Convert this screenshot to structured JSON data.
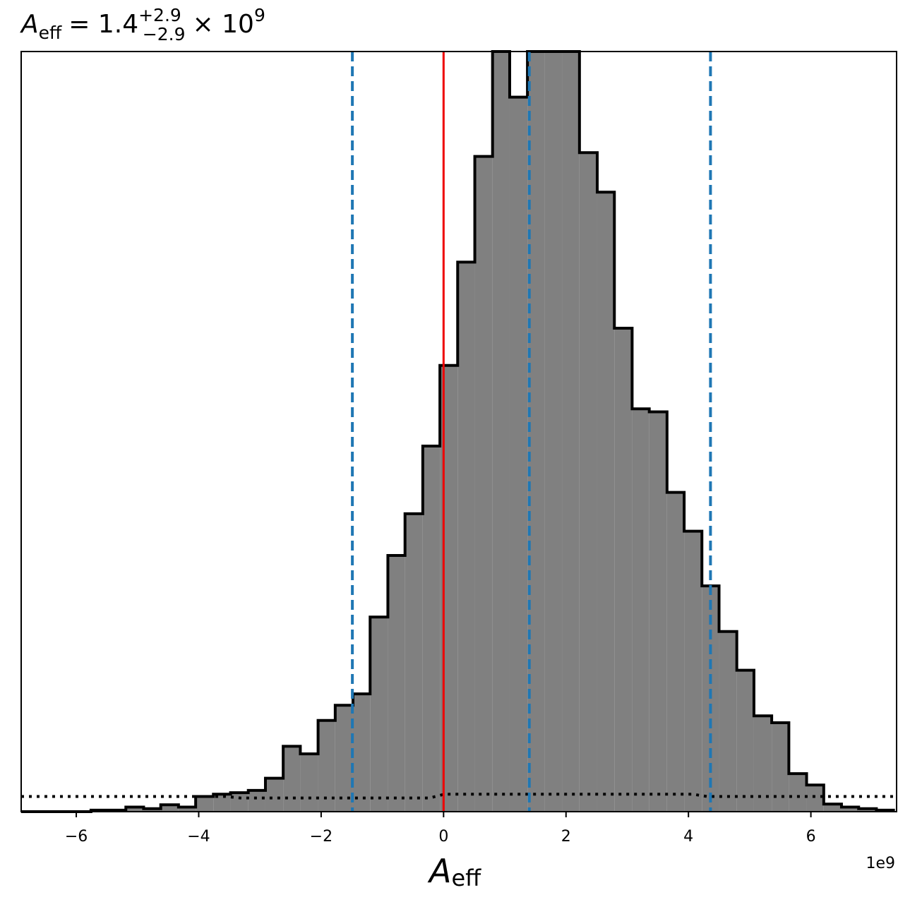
{
  "chart_data": {
    "type": "histogram",
    "title": {
      "symbol": "A",
      "subscript": "eff",
      "equals": "= 1.4",
      "superscript_err": "+2.9",
      "subscript_err": "−2.9",
      "multiplier": "× 10",
      "multiplier_exp": "9"
    },
    "xlabel": {
      "symbol": "A",
      "subscript": "eff"
    },
    "x_offset_label": "1e9",
    "xlim": [
      -6.9,
      7.4
    ],
    "ylim": [
      0,
      1.0
    ],
    "xticks": [
      -6,
      -4,
      -2,
      0,
      2,
      4,
      6
    ],
    "xtick_labels": [
      "−6",
      "−4",
      "−2",
      "0",
      "2",
      "4",
      "6"
    ],
    "grid": false,
    "bins": {
      "edges": [
        -6.9,
        -6.61,
        -6.33,
        -6.04,
        -5.76,
        -5.47,
        -5.19,
        -4.9,
        -4.62,
        -4.33,
        -4.05,
        -3.76,
        -3.48,
        -3.19,
        -2.91,
        -2.62,
        -2.34,
        -2.05,
        -1.77,
        -1.48,
        -1.2,
        -0.91,
        -0.63,
        -0.34,
        -0.06,
        0.23,
        0.51,
        0.8,
        1.08,
        1.37,
        1.65,
        1.94,
        2.22,
        2.51,
        2.79,
        3.08,
        3.36,
        3.65,
        3.93,
        4.22,
        4.5,
        4.79,
        5.07,
        5.36,
        5.64,
        5.93,
        6.21,
        6.5,
        6.78,
        7.07,
        7.35
      ],
      "heights": [
        0.0,
        0.0,
        0.0,
        0.0,
        0.002,
        0.002,
        0.006,
        0.004,
        0.009,
        0.006,
        0.02,
        0.023,
        0.025,
        0.028,
        0.044,
        0.086,
        0.076,
        0.12,
        0.14,
        0.155,
        0.256,
        0.337,
        0.392,
        0.481,
        0.587,
        0.723,
        0.862,
        1.05,
        0.94,
        1.05,
        1.0,
        1.005,
        0.867,
        0.815,
        0.636,
        0.53,
        0.526,
        0.42,
        0.369,
        0.297,
        0.237,
        0.186,
        0.126,
        0.117,
        0.05,
        0.035,
        0.01,
        0.006,
        0.004,
        0.002
      ]
    },
    "prior_level": 0.018,
    "lines": {
      "truth": {
        "x": 0,
        "color": "#ee0000"
      },
      "median": {
        "x": 1.4,
        "color": "#1f77b4"
      },
      "lower": {
        "x": -1.49,
        "color": "#1f77b4"
      },
      "upper": {
        "x": 4.36,
        "color": "#1f77b4"
      }
    },
    "colors": {
      "fill": "#808080",
      "edge": "#000000",
      "dashed": "#1f77b4",
      "truth": "#ee0000",
      "prior": "#000000"
    }
  }
}
